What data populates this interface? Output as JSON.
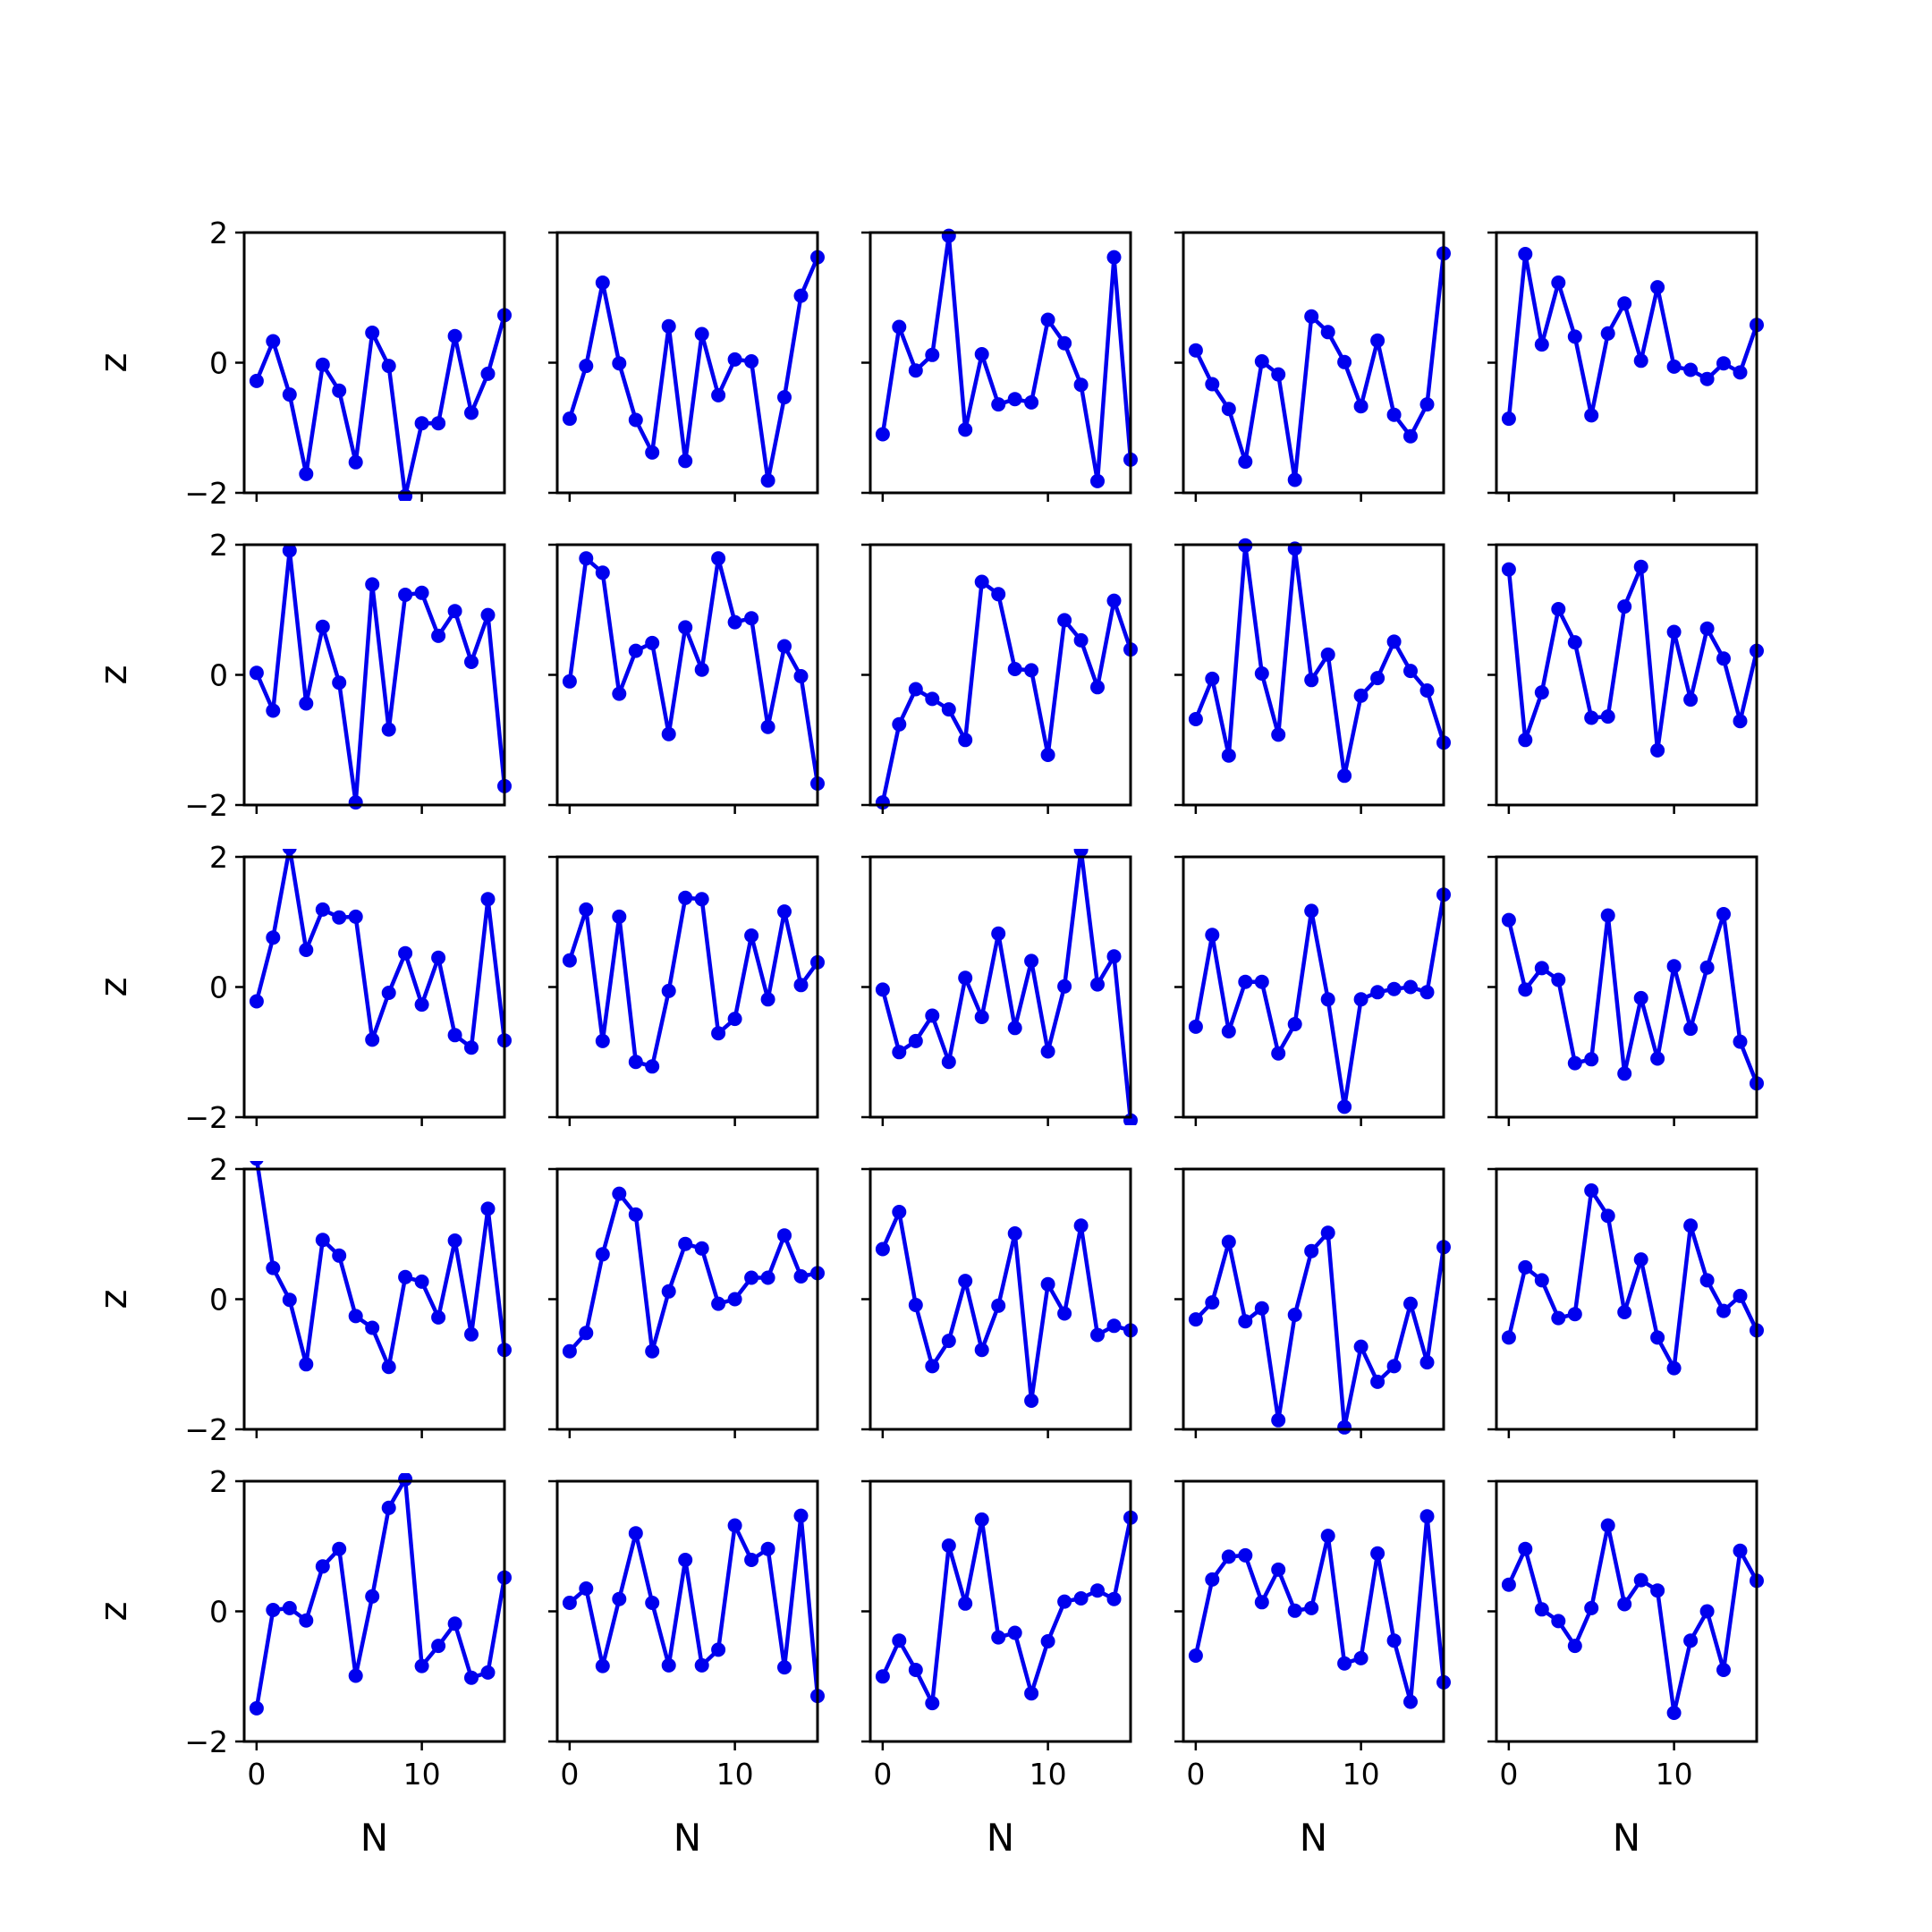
{
  "chart_data": {
    "type": "line",
    "layout": {
      "rows": 5,
      "cols": 5
    },
    "xlabel": "N",
    "ylabel": "z",
    "xlim": [
      -0.75,
      15.0
    ],
    "ylim": [
      -2,
      2
    ],
    "xticks": [
      0,
      10
    ],
    "xtick_labels": [
      "0",
      "10"
    ],
    "yticks": [
      -2,
      0,
      2
    ],
    "ytick_labels": [
      "−2",
      "0",
      "2"
    ],
    "x": [
      0,
      1,
      2,
      3,
      4,
      5,
      6,
      7,
      8,
      9,
      10,
      11,
      12,
      13,
      14,
      15
    ],
    "line_color": "#0000ee",
    "marker": "circle",
    "grid": false,
    "panels": [
      {
        "values": [
          -0.28,
          0.33,
          -0.49,
          -1.71,
          -0.03,
          -0.43,
          -1.53,
          0.46,
          -0.05,
          -2.05,
          -0.93,
          -0.93,
          0.41,
          -0.77,
          -0.17,
          0.73
        ]
      },
      {
        "values": [
          -0.86,
          -0.05,
          1.23,
          -0.01,
          -0.88,
          -1.38,
          0.56,
          -1.51,
          0.44,
          -0.5,
          0.05,
          0.02,
          -1.81,
          -0.53,
          1.03,
          1.62
        ]
      },
      {
        "values": [
          -1.1,
          0.55,
          -0.12,
          0.12,
          1.95,
          -1.03,
          0.13,
          -0.64,
          -0.56,
          -0.61,
          0.66,
          0.3,
          -0.34,
          -1.82,
          1.62,
          -1.49
        ]
      },
      {
        "values": [
          0.19,
          -0.33,
          -0.71,
          -1.52,
          0.02,
          -0.18,
          -1.8,
          0.71,
          0.47,
          0.01,
          -0.67,
          0.34,
          -0.8,
          -1.13,
          -0.64,
          1.68
        ]
      },
      {
        "values": [
          -0.86,
          1.67,
          0.28,
          1.23,
          0.4,
          -0.81,
          0.45,
          0.91,
          0.03,
          1.16,
          -0.06,
          -0.11,
          -0.25,
          -0.01,
          -0.15,
          0.58
        ]
      },
      {
        "values": [
          0.03,
          -0.55,
          1.91,
          -0.44,
          0.74,
          -0.12,
          -1.96,
          1.39,
          -0.84,
          1.23,
          1.26,
          0.6,
          0.98,
          0.2,
          0.92,
          -1.71
        ]
      },
      {
        "values": [
          -0.1,
          1.79,
          1.57,
          -0.29,
          0.37,
          0.49,
          -0.91,
          0.73,
          0.08,
          1.79,
          0.81,
          0.87,
          -0.8,
          0.44,
          -0.02,
          -1.67
        ]
      },
      {
        "values": [
          -1.96,
          -0.76,
          -0.22,
          -0.37,
          -0.53,
          -1.0,
          1.43,
          1.24,
          0.09,
          0.07,
          -1.23,
          0.84,
          0.53,
          -0.19,
          1.14,
          0.39
        ]
      },
      {
        "values": [
          -0.68,
          -0.06,
          -1.24,
          1.99,
          0.02,
          -0.92,
          1.94,
          -0.08,
          0.31,
          -1.55,
          -0.32,
          -0.05,
          0.51,
          0.06,
          -0.24,
          -1.04
        ]
      },
      {
        "values": [
          1.62,
          -1.0,
          -0.27,
          1.01,
          0.5,
          -0.66,
          -0.64,
          1.05,
          1.66,
          -1.16,
          0.66,
          -0.38,
          0.71,
          0.25,
          -0.71,
          0.37
        ]
      },
      {
        "values": [
          -0.22,
          0.76,
          2.14,
          0.57,
          1.19,
          1.07,
          1.08,
          -0.81,
          -0.09,
          0.52,
          -0.27,
          0.45,
          -0.74,
          -0.93,
          1.35,
          -0.82
        ]
      },
      {
        "values": [
          0.41,
          1.19,
          -0.83,
          1.08,
          -1.15,
          -1.22,
          -0.06,
          1.37,
          1.35,
          -0.71,
          -0.49,
          0.79,
          -0.19,
          1.16,
          0.03,
          0.38
        ]
      },
      {
        "values": [
          -0.04,
          -1.0,
          -0.83,
          -0.44,
          -1.15,
          0.14,
          -0.46,
          0.82,
          -0.63,
          0.4,
          -0.99,
          0.01,
          2.11,
          0.04,
          0.47,
          -2.05
        ]
      },
      {
        "values": [
          -0.61,
          0.8,
          -0.68,
          0.08,
          0.08,
          -1.02,
          -0.57,
          1.17,
          -0.19,
          -1.84,
          -0.19,
          -0.08,
          -0.03,
          -0.0,
          -0.08,
          1.42
        ]
      },
      {
        "values": [
          1.03,
          -0.04,
          0.29,
          0.11,
          -1.17,
          -1.11,
          1.1,
          -1.33,
          -0.17,
          -1.1,
          0.32,
          -0.64,
          0.3,
          1.12,
          -0.84,
          -1.48
        ]
      },
      {
        "values": [
          2.16,
          0.48,
          -0.01,
          -1.0,
          0.91,
          0.67,
          -0.26,
          -0.44,
          -1.04,
          0.34,
          0.27,
          -0.28,
          0.9,
          -0.54,
          1.39,
          -0.78
        ]
      },
      {
        "values": [
          -0.8,
          -0.52,
          0.69,
          1.62,
          1.3,
          -0.8,
          0.12,
          0.85,
          0.78,
          -0.07,
          -0.0,
          0.33,
          0.33,
          0.98,
          0.35,
          0.4
        ]
      },
      {
        "values": [
          0.77,
          1.34,
          -0.09,
          -1.03,
          -0.64,
          0.28,
          -0.78,
          -0.1,
          1.01,
          -1.56,
          0.23,
          -0.22,
          1.13,
          -0.55,
          -0.41,
          -0.48
        ]
      },
      {
        "values": [
          -0.31,
          -0.05,
          0.88,
          -0.34,
          -0.14,
          -1.86,
          -0.24,
          0.74,
          1.02,
          -1.97,
          -0.73,
          -1.27,
          -1.03,
          -0.07,
          -0.97,
          0.8
        ]
      },
      {
        "values": [
          -0.59,
          0.49,
          0.29,
          -0.29,
          -0.23,
          1.67,
          1.28,
          -0.2,
          0.61,
          -0.59,
          -1.06,
          1.13,
          0.29,
          -0.18,
          0.05,
          -0.48
        ]
      },
      {
        "values": [
          -1.49,
          0.02,
          0.05,
          -0.14,
          0.69,
          0.96,
          -0.99,
          0.23,
          1.59,
          2.03,
          -0.84,
          -0.53,
          -0.19,
          -1.02,
          -0.94,
          0.52
        ]
      },
      {
        "values": [
          0.13,
          0.35,
          -0.84,
          0.19,
          1.2,
          0.13,
          -0.83,
          0.79,
          -0.83,
          -0.59,
          1.32,
          0.79,
          0.96,
          -0.86,
          1.47,
          -1.3
        ]
      },
      {
        "values": [
          -1.0,
          -0.45,
          -0.9,
          -1.41,
          1.01,
          0.12,
          1.41,
          -0.4,
          -0.33,
          -1.26,
          -0.46,
          0.15,
          0.2,
          0.32,
          0.19,
          1.44
        ]
      },
      {
        "values": [
          -0.68,
          0.49,
          0.84,
          0.86,
          0.14,
          0.64,
          0.01,
          0.05,
          1.16,
          -0.8,
          -0.72,
          0.89,
          -0.45,
          -1.39,
          1.46,
          -1.09
        ]
      },
      {
        "values": [
          0.41,
          0.96,
          0.03,
          -0.15,
          -0.53,
          0.05,
          1.32,
          0.11,
          0.48,
          0.32,
          -1.56,
          -0.45,
          -0.0,
          -0.9,
          0.93,
          0.47
        ]
      }
    ]
  }
}
